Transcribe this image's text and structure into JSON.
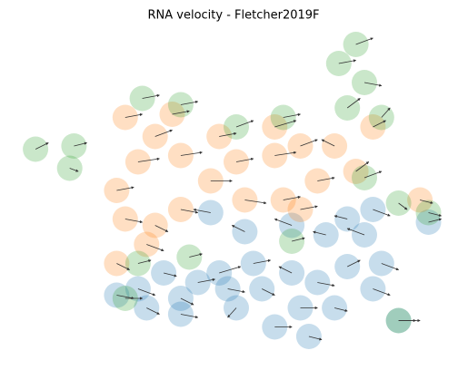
{
  "chart_data": {
    "type": "scatter",
    "title": "RNA velocity - Fletcher2019F",
    "xlim": [
      0,
      100
    ],
    "ylim": [
      0,
      100
    ],
    "series": [
      {
        "color": "#1f77b4",
        "x": [
          22,
          29,
          37,
          46,
          54,
          63,
          69,
          76,
          82,
          88,
          59,
          67,
          50,
          41,
          33,
          27,
          80,
          71,
          63,
          52,
          44,
          82,
          76,
          56,
          48,
          73,
          84,
          95,
          37,
          65
        ],
        "values": [
          17,
          13,
          11,
          24,
          27,
          24,
          21,
          26,
          19,
          9,
          7,
          4,
          13,
          21,
          24,
          19,
          36,
          36,
          39,
          37,
          43,
          44,
          41,
          19,
          19,
          13,
          27,
          40,
          16,
          13
        ],
        "u": [
          4,
          3,
          4,
          5,
          4,
          -3,
          4,
          3,
          4,
          5,
          4,
          3,
          -2,
          4,
          3,
          4,
          -4,
          -3,
          -4,
          -3,
          -4,
          4,
          -3,
          3,
          4,
          3,
          4,
          3,
          3,
          4
        ],
        "v": [
          -1,
          -2,
          -1,
          2,
          1,
          2,
          -1,
          2,
          -2,
          0,
          0,
          -1,
          -3,
          1,
          -1,
          -2,
          2,
          1,
          2,
          2,
          1,
          -2,
          1,
          -2,
          -1,
          -1,
          -2,
          1,
          -2,
          0
        ]
      },
      {
        "color": "#ff7f0e",
        "x": [
          22,
          24,
          22,
          27,
          31,
          24,
          37,
          44,
          50,
          59,
          65,
          73,
          78,
          69,
          61,
          52,
          37,
          31,
          29,
          46,
          59,
          82,
          93,
          65,
          35
        ],
        "values": [
          27,
          41,
          50,
          59,
          67,
          73,
          61,
          53,
          59,
          61,
          64,
          64,
          56,
          53,
          47,
          47,
          44,
          39,
          33,
          67,
          70,
          70,
          47,
          44,
          74
        ],
        "u": [
          3,
          4,
          4,
          5,
          4,
          4,
          5,
          5,
          4,
          5,
          4,
          -3,
          3,
          4,
          4,
          5,
          4,
          3,
          4,
          4,
          5,
          3,
          3,
          4,
          4
        ],
        "v": [
          -2,
          -1,
          1,
          1,
          2,
          1,
          1,
          0,
          1,
          1,
          2,
          2,
          3,
          1,
          1,
          -1,
          -1,
          -2,
          -2,
          1,
          2,
          2,
          -1,
          1,
          1
        ]
      },
      {
        "color": "#2ca02c",
        "x": [
          78,
          80,
          74,
          3,
          12,
          11,
          28,
          37,
          50,
          61,
          76,
          84,
          80,
          95,
          88,
          27,
          24,
          88,
          63,
          39
        ],
        "values": [
          96,
          84,
          90,
          63,
          64,
          57,
          79,
          77,
          70,
          73,
          76,
          73,
          54,
          43,
          46,
          27,
          16,
          9,
          34,
          29
        ],
        "u": [
          4,
          4,
          4,
          3,
          3,
          2,
          4,
          4,
          4,
          4,
          3,
          2,
          4,
          3,
          2,
          3,
          4,
          4,
          3,
          3
        ],
        "v": [
          2,
          -1,
          1,
          2,
          1,
          -1,
          1,
          1,
          2,
          1,
          3,
          3,
          2,
          -1,
          -2,
          1,
          0,
          0,
          1,
          1
        ]
      }
    ]
  }
}
